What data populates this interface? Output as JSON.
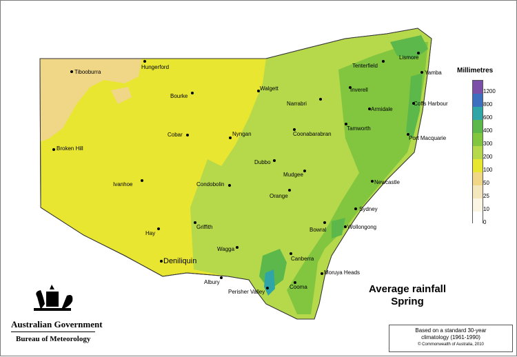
{
  "map": {
    "title_line1": "Average rainfall",
    "title_line2": "Spring",
    "note_line1": "Based on a standard 30-year",
    "note_line2": "climatology (1961-1990)",
    "copyright": "© Commonwealth of Australia, 2010"
  },
  "branding": {
    "government": "Australian Government",
    "bureau": "Bureau of Meteorology"
  },
  "legend": {
    "title": "Millimetres",
    "bins": [
      {
        "label": "1200",
        "color": "#7b4fa8"
      },
      {
        "label": "800",
        "color": "#3d6fbf"
      },
      {
        "label": "600",
        "color": "#2fa5a8"
      },
      {
        "label": "400",
        "color": "#5cb84a"
      },
      {
        "label": "300",
        "color": "#82c640"
      },
      {
        "label": "200",
        "color": "#b6d94c"
      },
      {
        "label": "100",
        "color": "#e8e631"
      },
      {
        "label": "50",
        "color": "#f0d788"
      },
      {
        "label": "25",
        "color": "#f5e7bd"
      },
      {
        "label": "10",
        "color": "#fbf5e4"
      },
      {
        "label": "0",
        "color": "#ffffff"
      }
    ]
  },
  "towns": [
    "Tibooburra",
    "Hungerford",
    "Bourke",
    "Walgett",
    "Narrabri",
    "Inverell",
    "Tenterfield",
    "Lismore",
    "Yamba",
    "Armidale",
    "Coffs Harbour",
    "Tamworth",
    "Port Macquarie",
    "Coonabarabran",
    "Cobar",
    "Nyngan",
    "Broken Hill",
    "Dubbo",
    "Mudgee",
    "Newcastle",
    "Ivanhoe",
    "Condobolin",
    "Orange",
    "Sydney",
    "Griffith",
    "Bowral",
    "Wollongong",
    "Hay",
    "Wagga",
    "Deniliquin",
    "Canberra",
    "Moruya Heads",
    "Albury",
    "Perisher Valley",
    "Cooma"
  ]
}
